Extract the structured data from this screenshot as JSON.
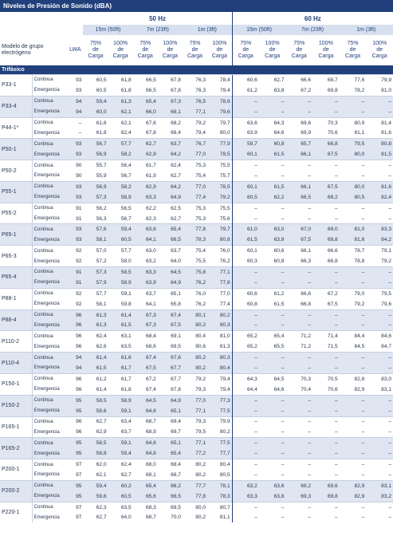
{
  "header": {
    "title": "Niveles de Presión de Sonido (dBA)",
    "model_label": "Modelo de grupo electrógeno",
    "lwa_label": "LWA",
    "frequencies": [
      "50 Hz",
      "60 Hz"
    ],
    "distances": [
      "15m (50ft)",
      "7m (23ft)",
      "1m (3ft)"
    ],
    "loads": [
      "75% de Carga",
      "100% de Carga"
    ]
  },
  "section": "Trifásico",
  "groups": [
    {
      "model": "P33-1",
      "rows": [
        {
          "mode": "Continua",
          "lwa": "93",
          "values": [
            "60,5",
            "61,8",
            "66,5",
            "67,8",
            "76,3",
            "78,4",
            "60,6",
            "62,7",
            "66,6",
            "68,7",
            "77,6",
            "79,9"
          ]
        },
        {
          "mode": "Emergencia",
          "lwa": "93",
          "values": [
            "60,5",
            "61,8",
            "66,5",
            "67,8",
            "76,3",
            "79,4",
            "61,2",
            "63,8",
            "67,2",
            "69,8",
            "78,2",
            "81,0"
          ]
        }
      ]
    },
    {
      "model": "P33-4",
      "rows": [
        {
          "mode": "Continua",
          "lwa": "94",
          "values": [
            "59,4",
            "61,3",
            "65,4",
            "67,3",
            "76,5",
            "78,6",
            "–",
            "–",
            "–",
            "–",
            "–",
            "–"
          ]
        },
        {
          "mode": "Emergencia",
          "lwa": "94",
          "values": [
            "60,0",
            "62,1",
            "66,0",
            "68,1",
            "77,1",
            "79,6",
            "–",
            "–",
            "–",
            "–",
            "–",
            "–"
          ]
        }
      ]
    },
    {
      "model": "P44-1*",
      "rows": [
        {
          "mode": "Continua",
          "lwa": "–",
          "values": [
            "61,6",
            "62,1",
            "67,6",
            "68,2",
            "79,2",
            "79,7",
            "63,6",
            "64,3",
            "69,6",
            "70,3",
            "80,9",
            "81,4"
          ]
        },
        {
          "mode": "Emergencia",
          "lwa": "–",
          "values": [
            "61,8",
            "62,4",
            "67,8",
            "68,4",
            "79,4",
            "80,0",
            "63,9",
            "64,6",
            "69,9",
            "70,6",
            "81,1",
            "81,6"
          ]
        }
      ]
    },
    {
      "model": "P50-1",
      "rows": [
        {
          "mode": "Continua",
          "lwa": "93",
          "values": [
            "56,7",
            "57,7",
            "62,7",
            "63,7",
            "76,7",
            "77,9",
            "59,7",
            "60,8",
            "65,7",
            "66,8",
            "79,5",
            "80,8"
          ]
        },
        {
          "mode": "Emergencia",
          "lwa": "93",
          "values": [
            "56,9",
            "58,2",
            "62,9",
            "64,2",
            "77,0",
            "78,5",
            "60,1",
            "61,5",
            "66,1",
            "67,5",
            "80,0",
            "81,5"
          ]
        }
      ]
    },
    {
      "model": "P50-2",
      "rows": [
        {
          "mode": "Continua",
          "lwa": "90",
          "values": [
            "55,7",
            "56,4",
            "61,7",
            "62,4",
            "75,3",
            "75,5",
            "–",
            "–",
            "–",
            "–",
            "–",
            "–"
          ]
        },
        {
          "mode": "Emergencia",
          "lwa": "90",
          "values": [
            "55,9",
            "56,7",
            "61,9",
            "62,7",
            "75,4",
            "75,7",
            "–",
            "–",
            "–",
            "–",
            "–",
            "–"
          ]
        }
      ]
    },
    {
      "model": "P55-1",
      "rows": [
        {
          "mode": "Continua",
          "lwa": "93",
          "values": [
            "56,9",
            "58,2",
            "62,9",
            "64,2",
            "77,0",
            "78,5",
            "60,1",
            "61,5",
            "66,1",
            "67,5",
            "80,0",
            "81,6"
          ]
        },
        {
          "mode": "Emergencia",
          "lwa": "93",
          "values": [
            "57,3",
            "58,9",
            "63,3",
            "64,9",
            "77,4",
            "79,2",
            "60,5",
            "62,2",
            "66,5",
            "68,2",
            "80,5",
            "82,4"
          ]
        }
      ]
    },
    {
      "model": "P55-2",
      "rows": [
        {
          "mode": "Continua",
          "lwa": "91",
          "values": [
            "56,2",
            "56,5",
            "62,2",
            "62,5",
            "75,3",
            "75,5",
            "–",
            "–",
            "–",
            "–",
            "–",
            "–"
          ]
        },
        {
          "mode": "Emergencia",
          "lwa": "91",
          "values": [
            "56,3",
            "56,7",
            "62,3",
            "62,7",
            "75,3",
            "75,6",
            "–",
            "–",
            "–",
            "–",
            "–",
            "–"
          ]
        }
      ]
    },
    {
      "model": "P65-1",
      "rows": [
        {
          "mode": "Continua",
          "lwa": "93",
          "values": [
            "57,6",
            "59,4",
            "63,6",
            "65,4",
            "77,8",
            "79,7",
            "61,0",
            "63,0",
            "67,0",
            "69,0",
            "81,0",
            "83,3"
          ]
        },
        {
          "mode": "Emergencia",
          "lwa": "93",
          "values": [
            "58,1",
            "60,5",
            "64,1",
            "66,5",
            "78,3",
            "80,8",
            "61,5",
            "63,8",
            "67,5",
            "69,8",
            "81,6",
            "84,2"
          ]
        }
      ]
    },
    {
      "model": "P65-3",
      "rows": [
        {
          "mode": "Continua",
          "lwa": "92",
          "values": [
            "57,0",
            "57,7",
            "63,0",
            "63,7",
            "75,4",
            "76,0",
            "60,1",
            "60,6",
            "66,1",
            "66,6",
            "78,7",
            "79,1"
          ]
        },
        {
          "mode": "Emergencia",
          "lwa": "92",
          "values": [
            "57,2",
            "58,0",
            "63,2",
            "64,0",
            "75,5",
            "76,2",
            "60,3",
            "60,8",
            "66,3",
            "66,8",
            "78,8",
            "79,2"
          ]
        }
      ]
    },
    {
      "model": "P65-4",
      "rows": [
        {
          "mode": "Continua",
          "lwa": "91",
          "values": [
            "57,3",
            "58,5",
            "63,3",
            "64,5",
            "75,8",
            "77,1",
            "–",
            "–",
            "–",
            "–",
            "–",
            "–"
          ]
        },
        {
          "mode": "Emergencia",
          "lwa": "91",
          "values": [
            "57,9",
            "58,9",
            "63,9",
            "64,9",
            "76,2",
            "77,8",
            "–",
            "–",
            "–",
            "–",
            "–",
            "–"
          ]
        }
      ]
    },
    {
      "model": "P88-1",
      "rows": [
        {
          "mode": "Continua",
          "lwa": "92",
          "values": [
            "57,7",
            "59,1",
            "63,7",
            "65,1",
            "76,0",
            "77,0",
            "60,6",
            "61,2",
            "66,6",
            "67,2",
            "79,0",
            "79,5"
          ]
        },
        {
          "mode": "Emergencia",
          "lwa": "92",
          "values": [
            "58,1",
            "59,8",
            "64,1",
            "65,8",
            "76,2",
            "77,4",
            "60,8",
            "61,5",
            "66,8",
            "67,5",
            "79,2",
            "79,6"
          ]
        }
      ]
    },
    {
      "model": "P88-4",
      "rows": [
        {
          "mode": "Continua",
          "lwa": "96",
          "values": [
            "61,3",
            "61,4",
            "67,3",
            "67,4",
            "80,1",
            "80,2",
            "–",
            "–",
            "–",
            "–",
            "–",
            "–"
          ]
        },
        {
          "mode": "Emergencia",
          "lwa": "96",
          "values": [
            "61,3",
            "61,5",
            "67,3",
            "67,5",
            "80,2",
            "80,3",
            "–",
            "–",
            "–",
            "–",
            "–",
            "–"
          ]
        }
      ]
    },
    {
      "model": "P110-2",
      "rows": [
        {
          "mode": "Continua",
          "lwa": "96",
          "values": [
            "62,4",
            "63,1",
            "68,4",
            "69,1",
            "80,4",
            "81,0",
            "65,2",
            "65,4",
            "71,2",
            "71,4",
            "84,4",
            "84,6"
          ]
        },
        {
          "mode": "Emergencia",
          "lwa": "96",
          "values": [
            "62,6",
            "63,5",
            "68,6",
            "69,5",
            "80,6",
            "81,3",
            "65,2",
            "65,5",
            "71,2",
            "71,5",
            "84,5",
            "84,7"
          ]
        }
      ]
    },
    {
      "model": "P110-4",
      "rows": [
        {
          "mode": "Continua",
          "lwa": "94",
          "values": [
            "61,4",
            "61,6",
            "67,4",
            "67,6",
            "80,2",
            "80,3",
            "–",
            "–",
            "–",
            "–",
            "–",
            "–"
          ]
        },
        {
          "mode": "Emergencia",
          "lwa": "94",
          "values": [
            "61,5",
            "61,7",
            "67,5",
            "67,7",
            "80,2",
            "80,4",
            "–",
            "–",
            "–",
            "–",
            "–",
            "–"
          ]
        }
      ]
    },
    {
      "model": "P150-1",
      "rows": [
        {
          "mode": "Continua",
          "lwa": "96",
          "values": [
            "61,2",
            "61,7",
            "67,2",
            "67,7",
            "79,2",
            "79,4",
            "64,3",
            "64,5",
            "70,3",
            "70,5",
            "82,8",
            "83,0"
          ]
        },
        {
          "mode": "Emergencia",
          "lwa": "96",
          "values": [
            "61,4",
            "61,8",
            "67,4",
            "67,8",
            "79,3",
            "79,4",
            "64,4",
            "64,6",
            "70,4",
            "70,6",
            "82,9",
            "83,1"
          ]
        }
      ]
    },
    {
      "model": "P150-2",
      "rows": [
        {
          "mode": "Continua",
          "lwa": "95",
          "values": [
            "58,5",
            "58,9",
            "64,5",
            "64,9",
            "77,0",
            "77,3",
            "–",
            "–",
            "–",
            "–",
            "–",
            "–"
          ]
        },
        {
          "mode": "Emergencia",
          "lwa": "95",
          "values": [
            "58,6",
            "59,1",
            "64,6",
            "65,1",
            "77,1",
            "77,5",
            "–",
            "–",
            "–",
            "–",
            "–",
            "–"
          ]
        }
      ]
    },
    {
      "model": "P165-1",
      "rows": [
        {
          "mode": "Continua",
          "lwa": "96",
          "values": [
            "62,7",
            "63,4",
            "68,7",
            "69,4",
            "79,3",
            "79,9",
            "–",
            "–",
            "–",
            "–",
            "–",
            "–"
          ]
        },
        {
          "mode": "Emergencia",
          "lwa": "96",
          "values": [
            "62,9",
            "63,7",
            "68,9",
            "69,7",
            "79,5",
            "80,2",
            "–",
            "–",
            "–",
            "–",
            "–",
            "–"
          ]
        }
      ]
    },
    {
      "model": "P165-2",
      "rows": [
        {
          "mode": "Continua",
          "lwa": "95",
          "values": [
            "58,5",
            "59,1",
            "64,6",
            "65,1",
            "77,1",
            "77,5",
            "–",
            "–",
            "–",
            "–",
            "–",
            "–"
          ]
        },
        {
          "mode": "Emergencia",
          "lwa": "95",
          "values": [
            "58,8",
            "59,4",
            "64,8",
            "65,4",
            "77,2",
            "77,7",
            "–",
            "–",
            "–",
            "–",
            "–",
            "–"
          ]
        }
      ]
    },
    {
      "model": "P200-1",
      "rows": [
        {
          "mode": "Continua",
          "lwa": "97",
          "values": [
            "62,0",
            "62,4",
            "68,0",
            "68,4",
            "80,2",
            "80,4",
            "–",
            "–",
            "–",
            "–",
            "–",
            "–"
          ]
        },
        {
          "mode": "Emergencia",
          "lwa": "97",
          "values": [
            "62,1",
            "62,7",
            "68,1",
            "68,7",
            "80,2",
            "80,5",
            "–",
            "–",
            "–",
            "–",
            "–",
            "–"
          ]
        }
      ]
    },
    {
      "model": "P200-2",
      "rows": [
        {
          "mode": "Continua",
          "lwa": "95",
          "values": [
            "59,4",
            "60,2",
            "65,4",
            "66,2",
            "77,7",
            "78,1",
            "63,2",
            "63,6",
            "69,2",
            "69,6",
            "82,9",
            "83,1"
          ]
        },
        {
          "mode": "Emergencia",
          "lwa": "95",
          "values": [
            "59,6",
            "60,5",
            "65,6",
            "66,5",
            "77,8",
            "78,3",
            "63,3",
            "63,8",
            "69,3",
            "69,8",
            "82,9",
            "83,2"
          ]
        }
      ]
    },
    {
      "model": "P220-1",
      "rows": [
        {
          "mode": "Continua",
          "lwa": "97",
          "values": [
            "62,3",
            "63,5",
            "68,3",
            "69,5",
            "80,0",
            "80,7",
            "–",
            "–",
            "–",
            "–",
            "–",
            "–"
          ]
        },
        {
          "mode": "Emergencia",
          "lwa": "97",
          "values": [
            "62,7",
            "64,0",
            "68,7",
            "70,0",
            "80,2",
            "81,1",
            "–",
            "–",
            "–",
            "–",
            "–",
            "–"
          ]
        }
      ]
    }
  ]
}
